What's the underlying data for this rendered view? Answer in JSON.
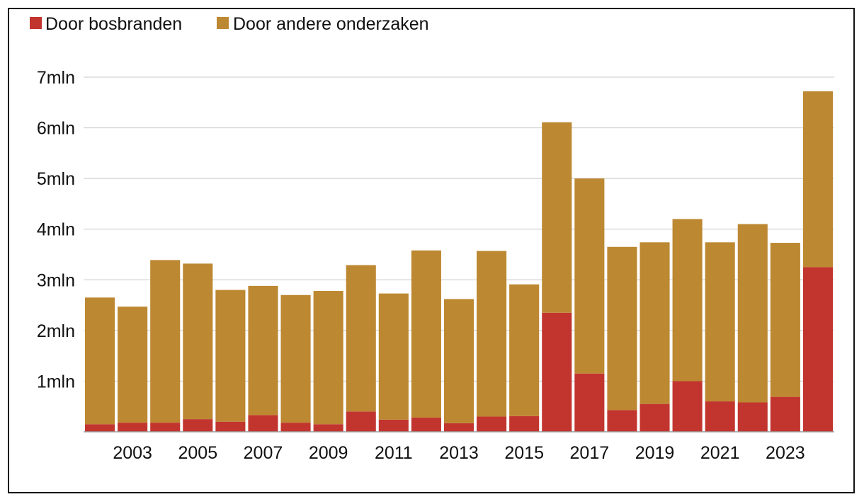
{
  "chart_data": {
    "type": "bar",
    "stacked": true,
    "legend": {
      "placement": "top-left"
    },
    "grid": true,
    "ylim": [
      0,
      7000000
    ],
    "y_ticks": [
      {
        "value": 1000000,
        "label": "1mln"
      },
      {
        "value": 2000000,
        "label": "2mln"
      },
      {
        "value": 3000000,
        "label": "3mln"
      },
      {
        "value": 4000000,
        "label": "4mln"
      },
      {
        "value": 5000000,
        "label": "5mln"
      },
      {
        "value": 6000000,
        "label": "6mln"
      },
      {
        "value": 7000000,
        "label": "7mln"
      }
    ],
    "categories": [
      "2002",
      "2003",
      "2004",
      "2005",
      "2006",
      "2007",
      "2008",
      "2009",
      "2010",
      "2011",
      "2012",
      "2013",
      "2014",
      "2015",
      "2016",
      "2017",
      "2018",
      "2019",
      "2020",
      "2021",
      "2022",
      "2023",
      "2024"
    ],
    "x_tick_labels": [
      "2003",
      "2005",
      "2007",
      "2009",
      "2011",
      "2013",
      "2015",
      "2017",
      "2019",
      "2021",
      "2023"
    ],
    "series": [
      {
        "name": "Door bosbranden",
        "color": "#c2352f",
        "values": [
          150000,
          180000,
          180000,
          250000,
          200000,
          330000,
          180000,
          150000,
          400000,
          240000,
          280000,
          170000,
          300000,
          310000,
          2350000,
          1150000,
          430000,
          550000,
          1000000,
          600000,
          580000,
          690000,
          3250000
        ]
      },
      {
        "name": "Door andere onderzaken",
        "color": "#bd8832",
        "values": [
          2500000,
          2290000,
          3210000,
          3070000,
          2600000,
          2550000,
          2520000,
          2630000,
          2890000,
          2490000,
          3300000,
          2450000,
          3270000,
          2600000,
          3760000,
          3850000,
          3220000,
          3190000,
          3200000,
          3140000,
          3520000,
          3040000,
          3470000
        ]
      }
    ]
  }
}
